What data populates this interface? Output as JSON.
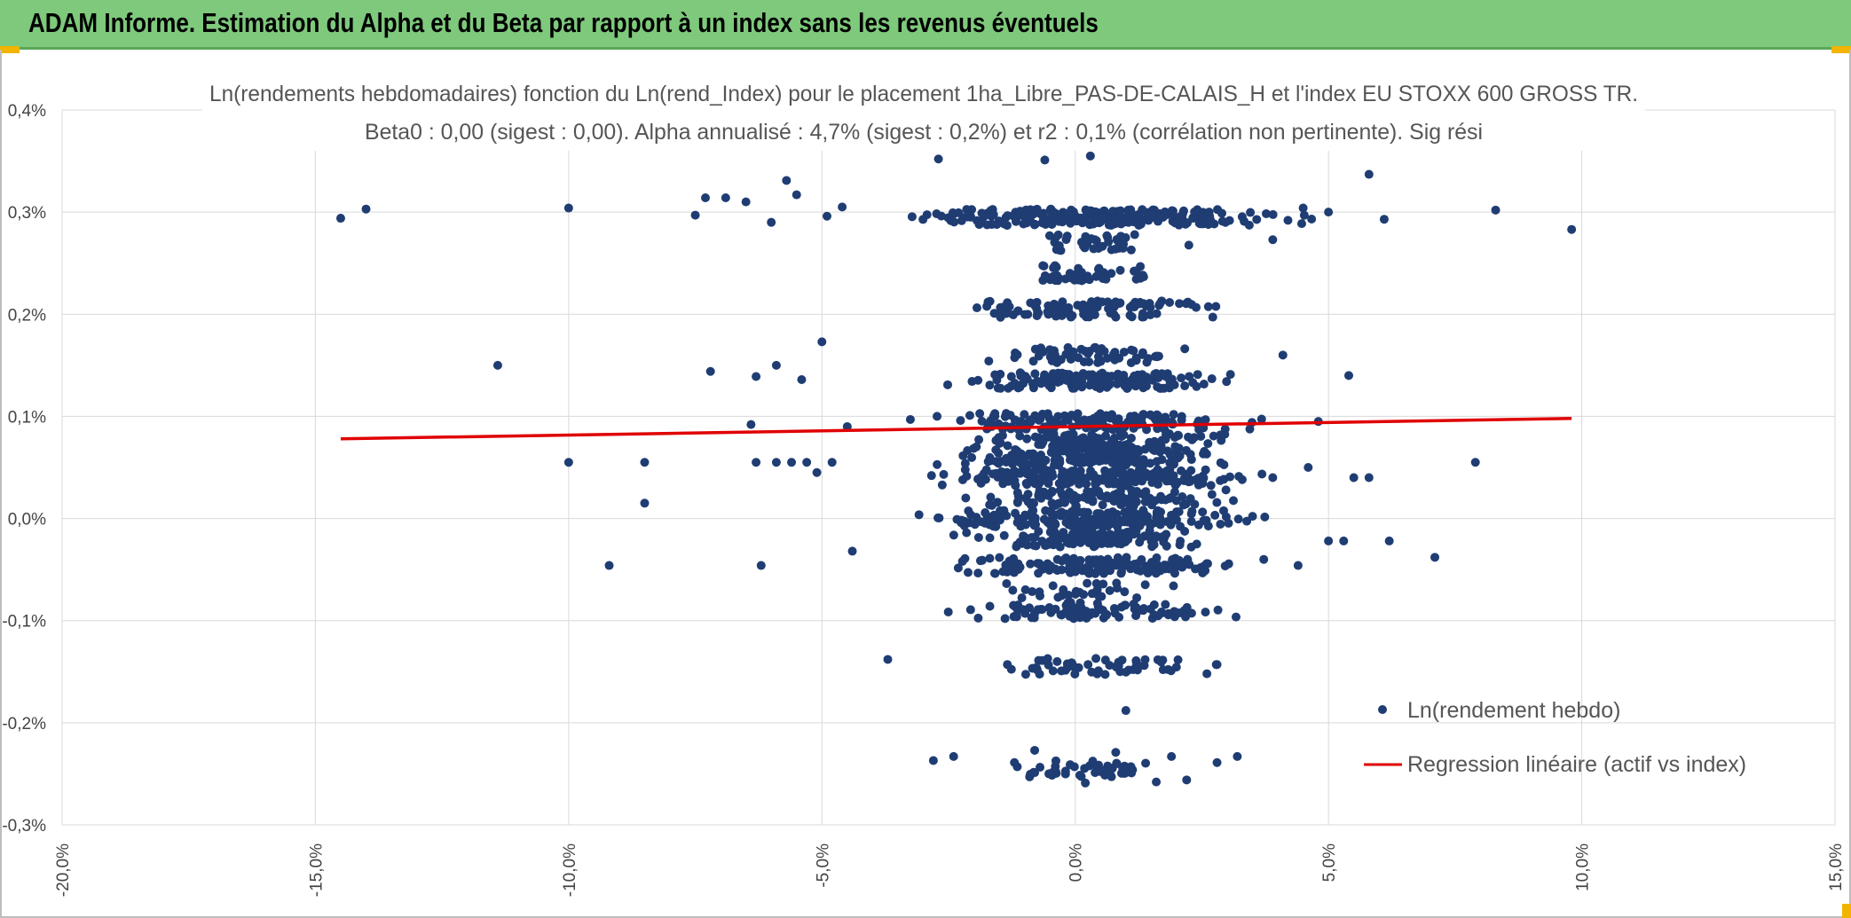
{
  "banner": {
    "title": "ADAM Informe. Estimation du Alpha et du Beta par rapport à un index sans les revenus éventuels",
    "color": "#7ec97c"
  },
  "chart_data": {
    "type": "scatter",
    "title_line1": "Ln(rendements hebdomadaires) fonction du Ln(rend_Index) pour le placement 1ha_Libre_PAS-DE-CALAIS_H et l'index EU STOXX 600 GROSS TR.",
    "title_line2": "Beta0 : 0,00 (sigest : 0,00). Alpha annualisé : 4,7% (sigest : 0,2%) et r2 : 0,1% (corrélation non pertinente). Sig rési",
    "xlim": [
      -20,
      15
    ],
    "ylim": [
      -0.3,
      0.4
    ],
    "x_ticks": [
      {
        "v": -20,
        "label": "-20,0%"
      },
      {
        "v": -15,
        "label": "-15,0%"
      },
      {
        "v": -10,
        "label": "-10,0%"
      },
      {
        "v": -5,
        "label": "-5,0%"
      },
      {
        "v": 0,
        "label": "0,0%"
      },
      {
        "v": 5,
        "label": "5,0%"
      },
      {
        "v": 10,
        "label": "10,0%"
      },
      {
        "v": 15,
        "label": "15,0%"
      }
    ],
    "y_ticks": [
      {
        "v": 0.4,
        "label": "0,4%"
      },
      {
        "v": 0.3,
        "label": "0,3%"
      },
      {
        "v": 0.2,
        "label": "0,2%"
      },
      {
        "v": 0.1,
        "label": "0,1%"
      },
      {
        "v": 0.0,
        "label": "0,0%"
      },
      {
        "v": -0.1,
        "label": "-0,1%"
      },
      {
        "v": -0.2,
        "label": "-0,2%"
      },
      {
        "v": -0.3,
        "label": "-0,3%"
      }
    ],
    "grid": true,
    "legend_position": "bottom-right",
    "scatter_series": {
      "name": "Ln(rendement hebdo)",
      "color": "#1f3d73",
      "points": [
        [
          -14.5,
          0.294
        ],
        [
          -14.0,
          0.303
        ],
        [
          -11.4,
          0.15
        ],
        [
          -10.0,
          0.304
        ],
        [
          -10.0,
          0.055
        ],
        [
          -9.2,
          -0.046
        ],
        [
          -8.5,
          0.055
        ],
        [
          -8.5,
          0.015
        ],
        [
          -7.5,
          0.297
        ],
        [
          -7.3,
          0.314
        ],
        [
          -7.2,
          0.144
        ],
        [
          -6.9,
          0.314
        ],
        [
          -6.5,
          0.31
        ],
        [
          -6.4,
          0.092
        ],
        [
          -6.3,
          0.139
        ],
        [
          -6.3,
          0.055
        ],
        [
          -6.2,
          -0.046
        ],
        [
          -6.0,
          0.29
        ],
        [
          -5.9,
          0.15
        ],
        [
          -5.9,
          0.055
        ],
        [
          -5.7,
          0.331
        ],
        [
          -5.6,
          0.055
        ],
        [
          -5.5,
          0.317
        ],
        [
          -5.4,
          0.136
        ],
        [
          -5.3,
          0.055
        ],
        [
          -5.1,
          0.045
        ],
        [
          -5.0,
          0.173
        ],
        [
          -4.9,
          0.296
        ],
        [
          -4.8,
          0.055
        ],
        [
          -4.6,
          0.305
        ],
        [
          -4.5,
          0.09
        ],
        [
          -4.4,
          -0.032
        ],
        [
          -3.7,
          -0.138
        ],
        [
          -2.8,
          -0.237
        ],
        [
          -2.4,
          -0.233
        ],
        [
          -1.2,
          -0.239
        ],
        [
          -0.9,
          -0.253
        ],
        [
          -0.8,
          -0.227
        ],
        [
          -0.1,
          -0.241
        ],
        [
          0.2,
          -0.259
        ],
        [
          0.5,
          -0.247
        ],
        [
          0.8,
          -0.229
        ],
        [
          1.0,
          -0.188
        ],
        [
          1.1,
          -0.243
        ],
        [
          1.6,
          -0.258
        ],
        [
          1.9,
          -0.233
        ],
        [
          2.2,
          -0.256
        ],
        [
          2.8,
          -0.239
        ],
        [
          3.2,
          -0.233
        ],
        [
          2.6,
          -0.152
        ],
        [
          2.8,
          -0.143
        ],
        [
          3.9,
          0.04
        ],
        [
          4.1,
          0.16
        ],
        [
          4.4,
          -0.046
        ],
        [
          4.6,
          0.05
        ],
        [
          4.8,
          0.095
        ],
        [
          5.0,
          -0.022
        ],
        [
          5.0,
          0.3
        ],
        [
          5.3,
          -0.022
        ],
        [
          5.4,
          0.14
        ],
        [
          5.5,
          0.04
        ],
        [
          5.8,
          0.04
        ],
        [
          5.8,
          0.337
        ],
        [
          6.1,
          0.293
        ],
        [
          6.2,
          -0.022
        ],
        [
          7.1,
          -0.038
        ],
        [
          7.9,
          0.055
        ],
        [
          8.3,
          0.302
        ],
        [
          9.8,
          0.283
        ],
        [
          4.5,
          0.304
        ],
        [
          4.2,
          0.292
        ],
        [
          3.9,
          0.273
        ],
        [
          0.3,
          0.355
        ],
        [
          -0.6,
          0.351
        ],
        [
          -2.7,
          0.352
        ]
      ]
    },
    "regression_series": {
      "name": "Regression linéaire (actif vs index)",
      "color": "#e00000",
      "x": [
        -14.5,
        9.8
      ],
      "y": [
        0.078,
        0.098
      ]
    }
  }
}
